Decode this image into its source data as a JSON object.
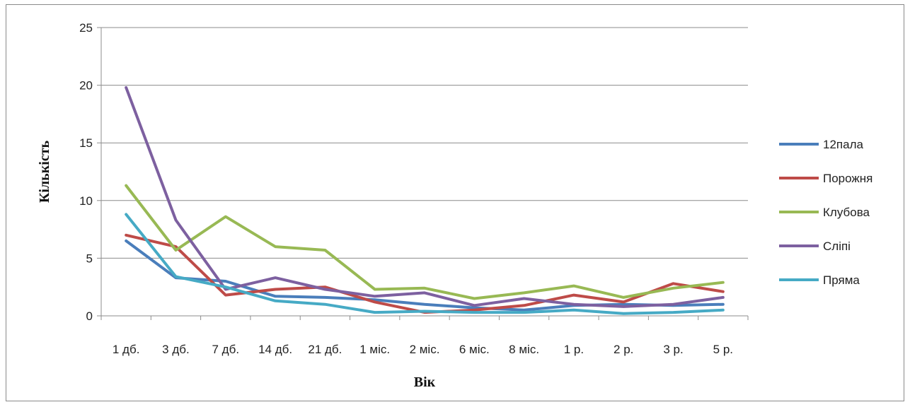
{
  "chart_data": {
    "type": "line",
    "title": "",
    "xlabel": "Вік",
    "ylabel": "Кількість",
    "categories": [
      "1 дб.",
      "3 дб.",
      "7 дб.",
      "14 дб.",
      "21 дб.",
      "1 міс.",
      "2 міс.",
      "6 міс.",
      "8 міс.",
      "1 р.",
      "2 р.",
      "3 р.",
      "5 р."
    ],
    "ylim": [
      0,
      25
    ],
    "yticks": [
      "0",
      "5",
      "10",
      "15",
      "20",
      "25"
    ],
    "grid": true,
    "legend_position": "right",
    "series": [
      {
        "name": "12пала",
        "color": "#4a7ebb",
        "values": [
          6.5,
          3.3,
          3.0,
          1.7,
          1.6,
          1.4,
          1.0,
          0.7,
          0.5,
          0.9,
          1.0,
          0.9,
          1.0
        ]
      },
      {
        "name": "Порожня",
        "color": "#be4b48",
        "values": [
          7.0,
          6.0,
          1.8,
          2.3,
          2.5,
          1.2,
          0.3,
          0.5,
          0.9,
          1.8,
          1.2,
          2.8,
          2.1
        ]
      },
      {
        "name": "Клубова",
        "color": "#98b954",
        "values": [
          11.3,
          5.7,
          8.6,
          6.0,
          5.7,
          2.3,
          2.4,
          1.5,
          2.0,
          2.6,
          1.6,
          2.4,
          2.9
        ]
      },
      {
        "name": "Сліпі",
        "color": "#7d60a0",
        "values": [
          19.8,
          8.3,
          2.3,
          3.3,
          2.3,
          1.7,
          2.0,
          0.9,
          1.5,
          1.0,
          0.8,
          1.0,
          1.6
        ]
      },
      {
        "name": "Пряма",
        "color": "#46aac5",
        "values": [
          8.8,
          3.4,
          2.5,
          1.3,
          1.0,
          0.3,
          0.4,
          0.3,
          0.3,
          0.5,
          0.2,
          0.3,
          0.5
        ]
      }
    ]
  }
}
